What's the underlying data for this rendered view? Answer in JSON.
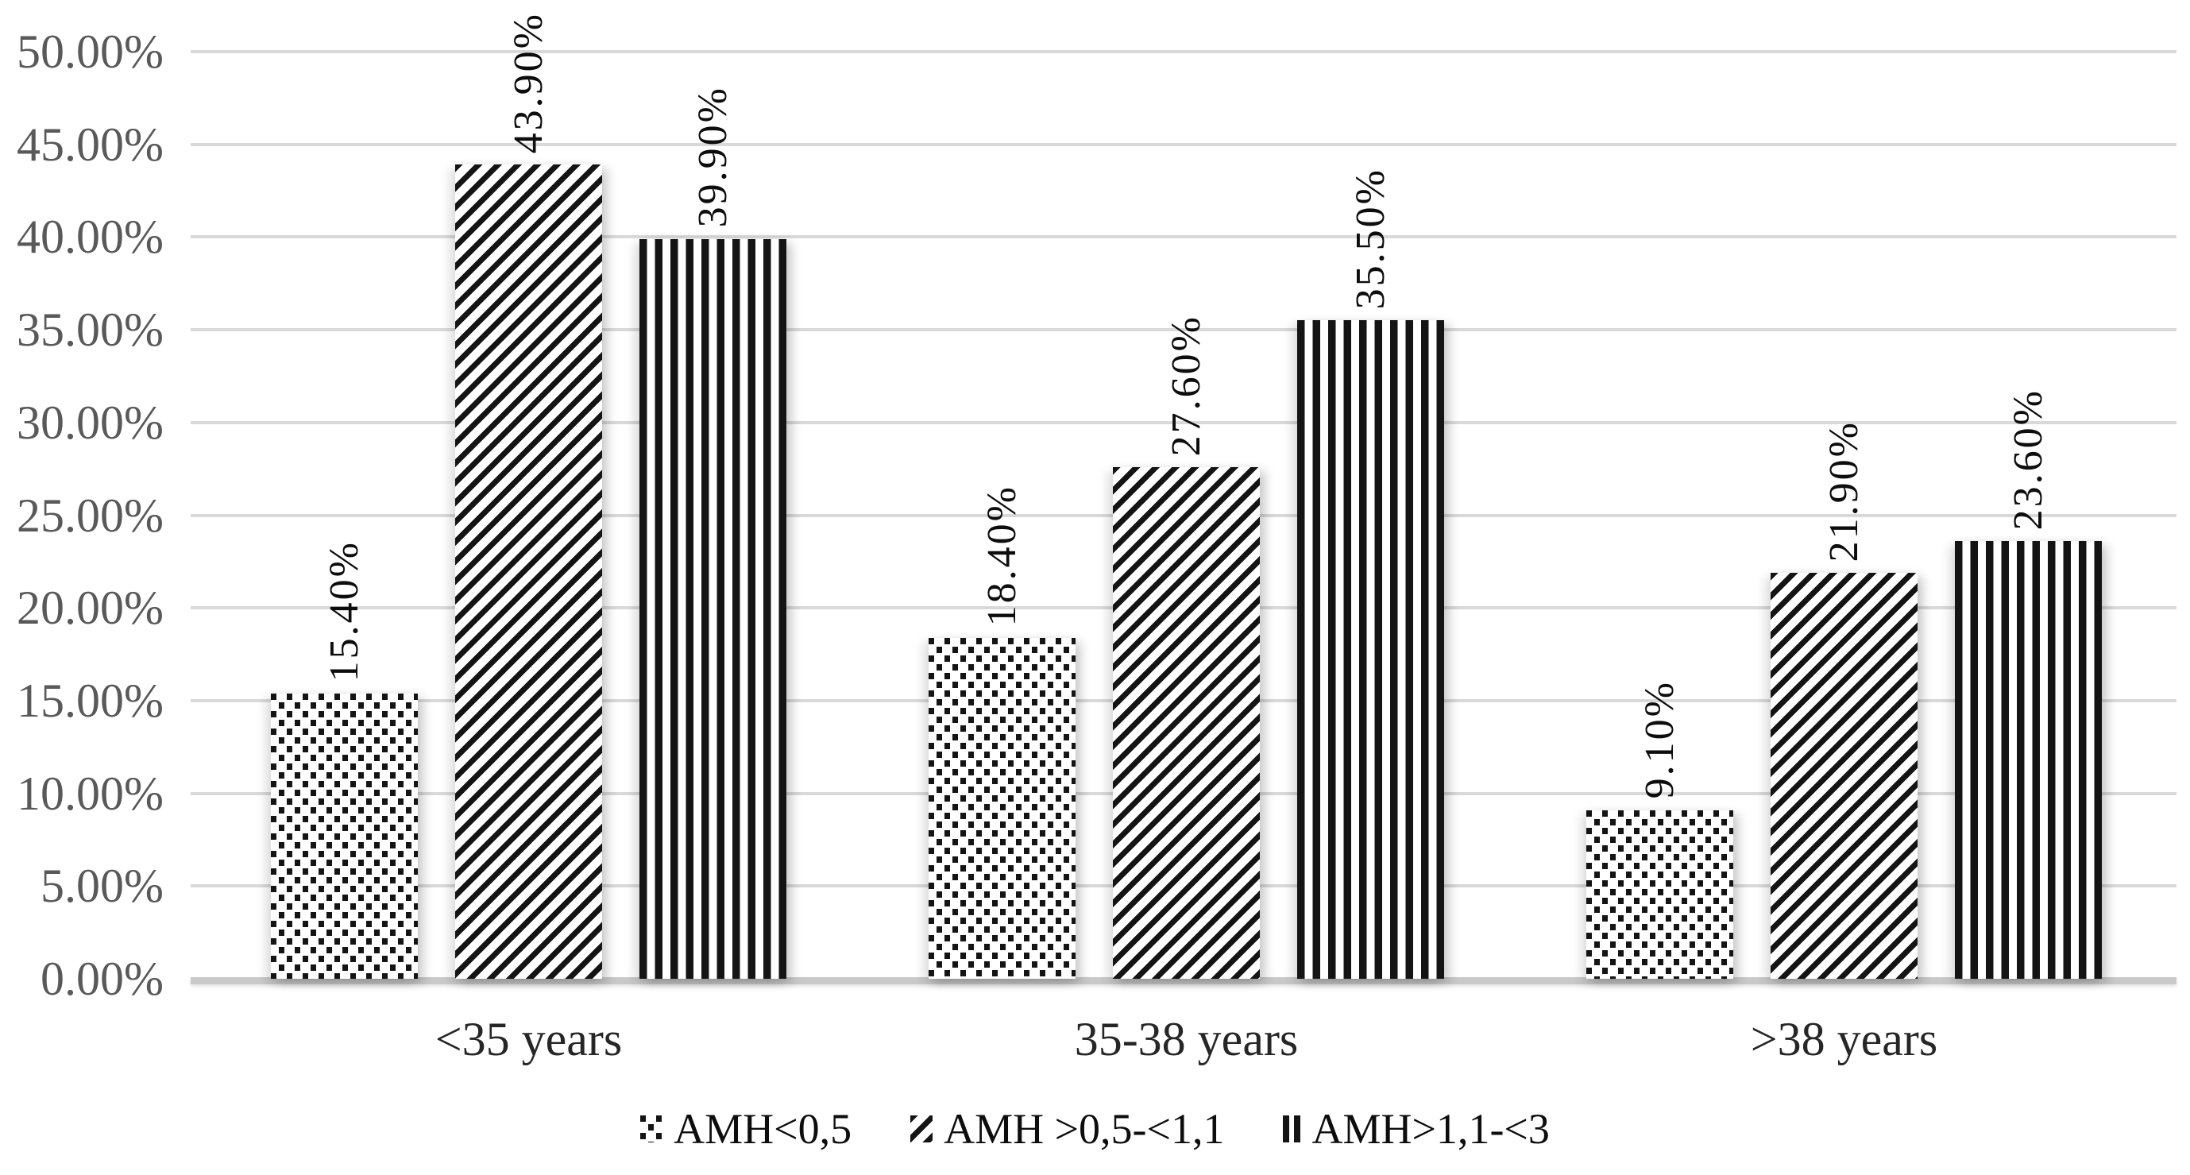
{
  "chart_data": {
    "type": "bar",
    "title": "",
    "categories": [
      "<35 years",
      "35-38 years",
      ">38 years"
    ],
    "series": [
      {
        "name": "AMH<0,5",
        "pattern": "dots",
        "values": [
          15.4,
          18.4,
          9.1
        ],
        "data_labels": [
          "15.40%",
          "18.40%",
          "9.10%"
        ]
      },
      {
        "name": "AMH >0,5-<1,1",
        "pattern": "diagonal-stripes",
        "values": [
          43.9,
          27.6,
          21.9
        ],
        "data_labels": [
          "43.90%",
          "27.60%",
          "21.90%"
        ]
      },
      {
        "name": "AMH>1,1-<3",
        "pattern": "vertical-stripes",
        "values": [
          39.9,
          35.5,
          23.6
        ],
        "data_labels": [
          "39.90%",
          "35.50%",
          "23.60%"
        ]
      }
    ],
    "xlabel": "",
    "ylabel": "",
    "y_axis": {
      "min": 0,
      "max": 50,
      "grid": true,
      "ticks": [
        {
          "value": 0,
          "label": "0.00%"
        },
        {
          "value": 5,
          "label": "5.00%"
        },
        {
          "value": 10,
          "label": "10.00%"
        },
        {
          "value": 15,
          "label": "15.00%"
        },
        {
          "value": 20,
          "label": "20.00%"
        },
        {
          "value": 25,
          "label": "25.00%"
        },
        {
          "value": 30,
          "label": "30.00%"
        },
        {
          "value": 35,
          "label": "35.00%"
        },
        {
          "value": 40,
          "label": "40.00%"
        },
        {
          "value": 45,
          "label": "45.00%"
        },
        {
          "value": 50,
          "label": "50.00%"
        }
      ]
    },
    "legend": {
      "position": "bottom",
      "items": [
        {
          "label": "AMH<0,5",
          "pattern": "dots"
        },
        {
          "label": "AMH >0,5-<1,1",
          "pattern": "diagonal-stripes"
        },
        {
          "label": "AMH>1,1-<3",
          "pattern": "vertical-stripes"
        }
      ]
    },
    "colors": {
      "bar_foreground": "#141414",
      "bar_background": "#ffffff",
      "gridline": "#d9d9d9",
      "axis_line": "#c9c9c9",
      "y_tick_text": "#595959",
      "category_text": "#262626",
      "data_label_text": "#0d0d0d",
      "legend_text": "#0d0d0d"
    }
  }
}
